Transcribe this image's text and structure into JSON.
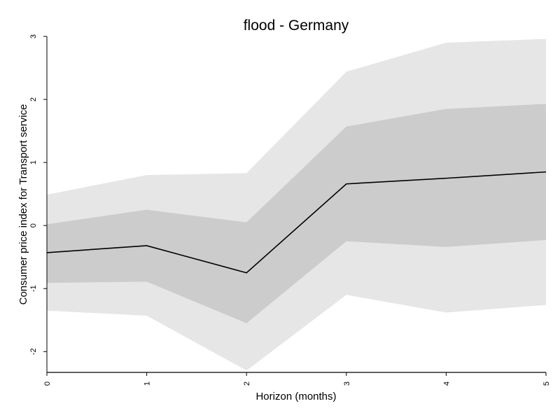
{
  "chart_data": {
    "type": "line",
    "title": "flood - Germany",
    "xlabel": "Horizon (months)",
    "ylabel": "Consumer price index for Transport service",
    "xlim": [
      0,
      5
    ],
    "ylim": [
      -2.33,
      3
    ],
    "x": [
      0,
      1,
      2,
      3,
      4,
      5
    ],
    "x_ticks": [
      "0",
      "1",
      "2",
      "3",
      "4",
      "5"
    ],
    "y_ticks": [
      "-2",
      "-1",
      "0",
      "1",
      "2",
      "3"
    ],
    "y_tick_values": [
      -2,
      -1,
      0,
      1,
      2,
      3
    ],
    "series": [
      {
        "role": "line",
        "values": [
          -0.43,
          -0.32,
          -0.75,
          0.66,
          0.75,
          0.85
        ],
        "color": "#000000"
      }
    ],
    "bands": [
      {
        "role": "outer-band",
        "lower": [
          -1.35,
          -1.43,
          -2.3,
          -1.1,
          -1.38,
          -1.26
        ],
        "upper": [
          0.49,
          0.8,
          0.83,
          2.44,
          2.9,
          2.96
        ],
        "color": "#e6e6e6"
      },
      {
        "role": "inner-band",
        "lower": [
          -0.91,
          -0.89,
          -1.55,
          -0.25,
          -0.34,
          -0.23
        ],
        "upper": [
          0.02,
          0.25,
          0.05,
          1.57,
          1.85,
          1.93
        ],
        "color": "#cccccc"
      }
    ],
    "grid": false,
    "legend": "none"
  }
}
